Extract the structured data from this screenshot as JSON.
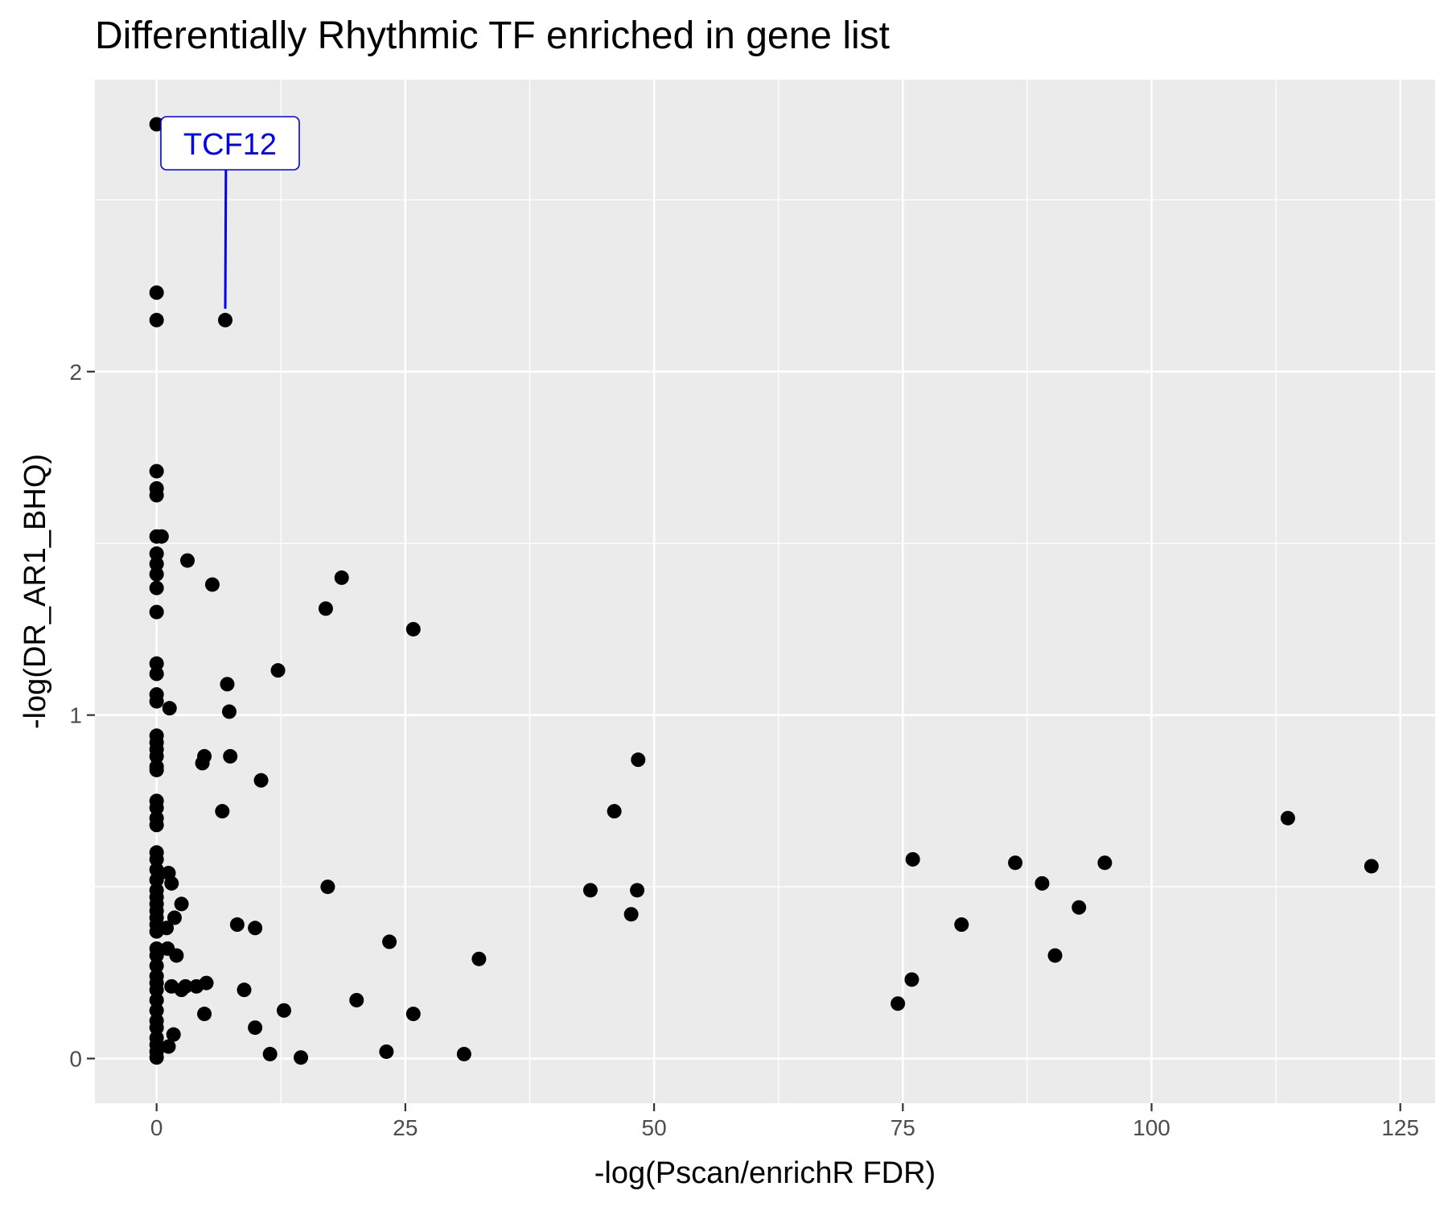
{
  "chart_data": {
    "type": "scatter",
    "title": "Differentially Rhythmic TF enriched in gene list",
    "xlabel": "-log(Pscan/enrichR FDR)",
    "ylabel": "-log(DR_AR1_BHQ)",
    "xlim": [
      -6.2,
      128.5
    ],
    "ylim": [
      -0.13,
      2.85
    ],
    "x_ticks": [
      0,
      25,
      50,
      75,
      100,
      125
    ],
    "y_ticks": [
      0,
      1,
      2
    ],
    "grid": true,
    "colors": {
      "panel": "#ebebeb",
      "point": "#000000",
      "annotation": "#0000ee"
    },
    "annotations": [
      {
        "text": "TCF12",
        "x": 6.9,
        "y": 2.15
      }
    ],
    "points": [
      {
        "x": 0,
        "y": 2.72
      },
      {
        "x": 0,
        "y": 2.23
      },
      {
        "x": 0,
        "y": 2.15
      },
      {
        "x": 6.9,
        "y": 2.15
      },
      {
        "x": 0,
        "y": 1.71
      },
      {
        "x": 0,
        "y": 1.66
      },
      {
        "x": 0,
        "y": 1.64
      },
      {
        "x": 0,
        "y": 1.52
      },
      {
        "x": 0.5,
        "y": 1.52
      },
      {
        "x": 0,
        "y": 1.47
      },
      {
        "x": 3.1,
        "y": 1.45
      },
      {
        "x": 0,
        "y": 1.44
      },
      {
        "x": 0,
        "y": 1.41
      },
      {
        "x": 5.6,
        "y": 1.38
      },
      {
        "x": 0,
        "y": 1.37
      },
      {
        "x": 18.6,
        "y": 1.4
      },
      {
        "x": 0,
        "y": 1.3
      },
      {
        "x": 17,
        "y": 1.31
      },
      {
        "x": 25.8,
        "y": 1.25
      },
      {
        "x": 0,
        "y": 1.15
      },
      {
        "x": 0,
        "y": 1.12
      },
      {
        "x": 12.2,
        "y": 1.13
      },
      {
        "x": 7.1,
        "y": 1.09
      },
      {
        "x": 0,
        "y": 1.06
      },
      {
        "x": 0,
        "y": 1.04
      },
      {
        "x": 1.3,
        "y": 1.02
      },
      {
        "x": 7.3,
        "y": 1.01
      },
      {
        "x": 0,
        "y": 0.94
      },
      {
        "x": 0,
        "y": 0.92
      },
      {
        "x": 0,
        "y": 0.9
      },
      {
        "x": 0,
        "y": 0.88
      },
      {
        "x": 4.8,
        "y": 0.88
      },
      {
        "x": 7.4,
        "y": 0.88
      },
      {
        "x": 4.6,
        "y": 0.86
      },
      {
        "x": 0,
        "y": 0.85
      },
      {
        "x": 0,
        "y": 0.84
      },
      {
        "x": 10.5,
        "y": 0.81
      },
      {
        "x": 48.4,
        "y": 0.87
      },
      {
        "x": 0,
        "y": 0.75
      },
      {
        "x": 0,
        "y": 0.73
      },
      {
        "x": 0,
        "y": 0.7
      },
      {
        "x": 0,
        "y": 0.68
      },
      {
        "x": 6.6,
        "y": 0.72
      },
      {
        "x": 46,
        "y": 0.72
      },
      {
        "x": 113.7,
        "y": 0.7
      },
      {
        "x": 0,
        "y": 0.6
      },
      {
        "x": 0,
        "y": 0.58
      },
      {
        "x": 0,
        "y": 0.55
      },
      {
        "x": 0,
        "y": 0.52
      },
      {
        "x": 1.2,
        "y": 0.54
      },
      {
        "x": 1.5,
        "y": 0.51
      },
      {
        "x": 17.2,
        "y": 0.5
      },
      {
        "x": 0,
        "y": 0.49
      },
      {
        "x": 0,
        "y": 0.47
      },
      {
        "x": 0,
        "y": 0.45
      },
      {
        "x": 2.5,
        "y": 0.45
      },
      {
        "x": 0,
        "y": 0.43
      },
      {
        "x": 0,
        "y": 0.41
      },
      {
        "x": 0,
        "y": 0.39
      },
      {
        "x": 1.8,
        "y": 0.41
      },
      {
        "x": 0,
        "y": 0.37
      },
      {
        "x": 1.0,
        "y": 0.38
      },
      {
        "x": 8.1,
        "y": 0.39
      },
      {
        "x": 9.9,
        "y": 0.38
      },
      {
        "x": 43.6,
        "y": 0.49
      },
      {
        "x": 48.3,
        "y": 0.49
      },
      {
        "x": 47.7,
        "y": 0.42
      },
      {
        "x": 76,
        "y": 0.58
      },
      {
        "x": 86.3,
        "y": 0.57
      },
      {
        "x": 95.3,
        "y": 0.57
      },
      {
        "x": 89,
        "y": 0.51
      },
      {
        "x": 122.1,
        "y": 0.56
      },
      {
        "x": 92.7,
        "y": 0.44
      },
      {
        "x": 80.9,
        "y": 0.39
      },
      {
        "x": 90.3,
        "y": 0.3
      },
      {
        "x": 0,
        "y": 0.32
      },
      {
        "x": 0,
        "y": 0.3
      },
      {
        "x": 1.1,
        "y": 0.32
      },
      {
        "x": 2,
        "y": 0.3
      },
      {
        "x": 0,
        "y": 0.27
      },
      {
        "x": 0,
        "y": 0.24
      },
      {
        "x": 23.4,
        "y": 0.34
      },
      {
        "x": 32.4,
        "y": 0.29
      },
      {
        "x": 0,
        "y": 0.22
      },
      {
        "x": 0,
        "y": 0.2
      },
      {
        "x": 1.5,
        "y": 0.21
      },
      {
        "x": 2.5,
        "y": 0.2
      },
      {
        "x": 2.9,
        "y": 0.21
      },
      {
        "x": 4.0,
        "y": 0.21
      },
      {
        "x": 5.0,
        "y": 0.22
      },
      {
        "x": 8.8,
        "y": 0.2
      },
      {
        "x": 0,
        "y": 0.17
      },
      {
        "x": 0,
        "y": 0.14
      },
      {
        "x": 20.1,
        "y": 0.17
      },
      {
        "x": 12.8,
        "y": 0.14
      },
      {
        "x": 4.8,
        "y": 0.13
      },
      {
        "x": 25.8,
        "y": 0.13
      },
      {
        "x": 0,
        "y": 0.11
      },
      {
        "x": 0,
        "y": 0.09
      },
      {
        "x": 9.9,
        "y": 0.09
      },
      {
        "x": 1.7,
        "y": 0.07
      },
      {
        "x": 0,
        "y": 0.06
      },
      {
        "x": 0,
        "y": 0.04
      },
      {
        "x": 1.2,
        "y": 0.035
      },
      {
        "x": 0,
        "y": 0.02
      },
      {
        "x": 11.4,
        "y": 0.013
      },
      {
        "x": 23.1,
        "y": 0.02
      },
      {
        "x": 30.9,
        "y": 0.013
      },
      {
        "x": 0,
        "y": 0.003
      },
      {
        "x": 14.5,
        "y": 0.003
      },
      {
        "x": 74.5,
        "y": 0.16
      },
      {
        "x": 75.9,
        "y": 0.23
      }
    ]
  }
}
